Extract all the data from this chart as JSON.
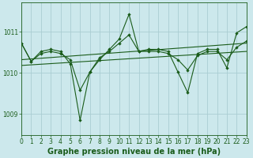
{
  "background_color": "#cce8ec",
  "grid_color": "#aacdd2",
  "line_color": "#1a5c1a",
  "title": "Graphe pression niveau de la mer (hPa)",
  "xlim": [
    0,
    23
  ],
  "ylim": [
    1008.5,
    1011.7
  ],
  "yticks": [
    1009,
    1010,
    1011
  ],
  "xticks": [
    0,
    1,
    2,
    3,
    4,
    5,
    6,
    7,
    8,
    9,
    10,
    11,
    12,
    13,
    14,
    15,
    16,
    17,
    18,
    19,
    20,
    21,
    22,
    23
  ],
  "series1_x": [
    0,
    1,
    2,
    3,
    4,
    5,
    6,
    7,
    8,
    9,
    10,
    11,
    12,
    13,
    14,
    15,
    16,
    17,
    18,
    19,
    20,
    21,
    22,
    23
  ],
  "series1_y": [
    1010.72,
    1010.28,
    1010.52,
    1010.57,
    1010.52,
    1010.22,
    1008.85,
    1010.02,
    1010.32,
    1010.57,
    1010.82,
    1011.42,
    1010.52,
    1010.57,
    1010.57,
    1010.52,
    1010.02,
    1009.52,
    1010.47,
    1010.57,
    1010.57,
    1010.12,
    1010.97,
    1011.12
  ],
  "series2_x": [
    0,
    1,
    2,
    3,
    4,
    5,
    6,
    7,
    8,
    9,
    10,
    11,
    12,
    13,
    14,
    15,
    16,
    17,
    18,
    19,
    20,
    21,
    22,
    23
  ],
  "series2_y": [
    1010.72,
    1010.28,
    1010.47,
    1010.52,
    1010.47,
    1010.32,
    1009.58,
    1010.02,
    1010.37,
    1010.52,
    1010.72,
    1010.92,
    1010.52,
    1010.52,
    1010.52,
    1010.47,
    1010.32,
    1010.07,
    1010.42,
    1010.52,
    1010.52,
    1010.32,
    1010.62,
    1010.77
  ],
  "trend1_x": [
    0,
    23
  ],
  "trend1_y": [
    1010.32,
    1010.72
  ],
  "trend2_x": [
    0,
    23
  ],
  "trend2_y": [
    1010.18,
    1010.52
  ],
  "title_fontsize": 7,
  "tick_fontsize": 5.5,
  "marker_size": 2.2,
  "line_width": 0.8
}
